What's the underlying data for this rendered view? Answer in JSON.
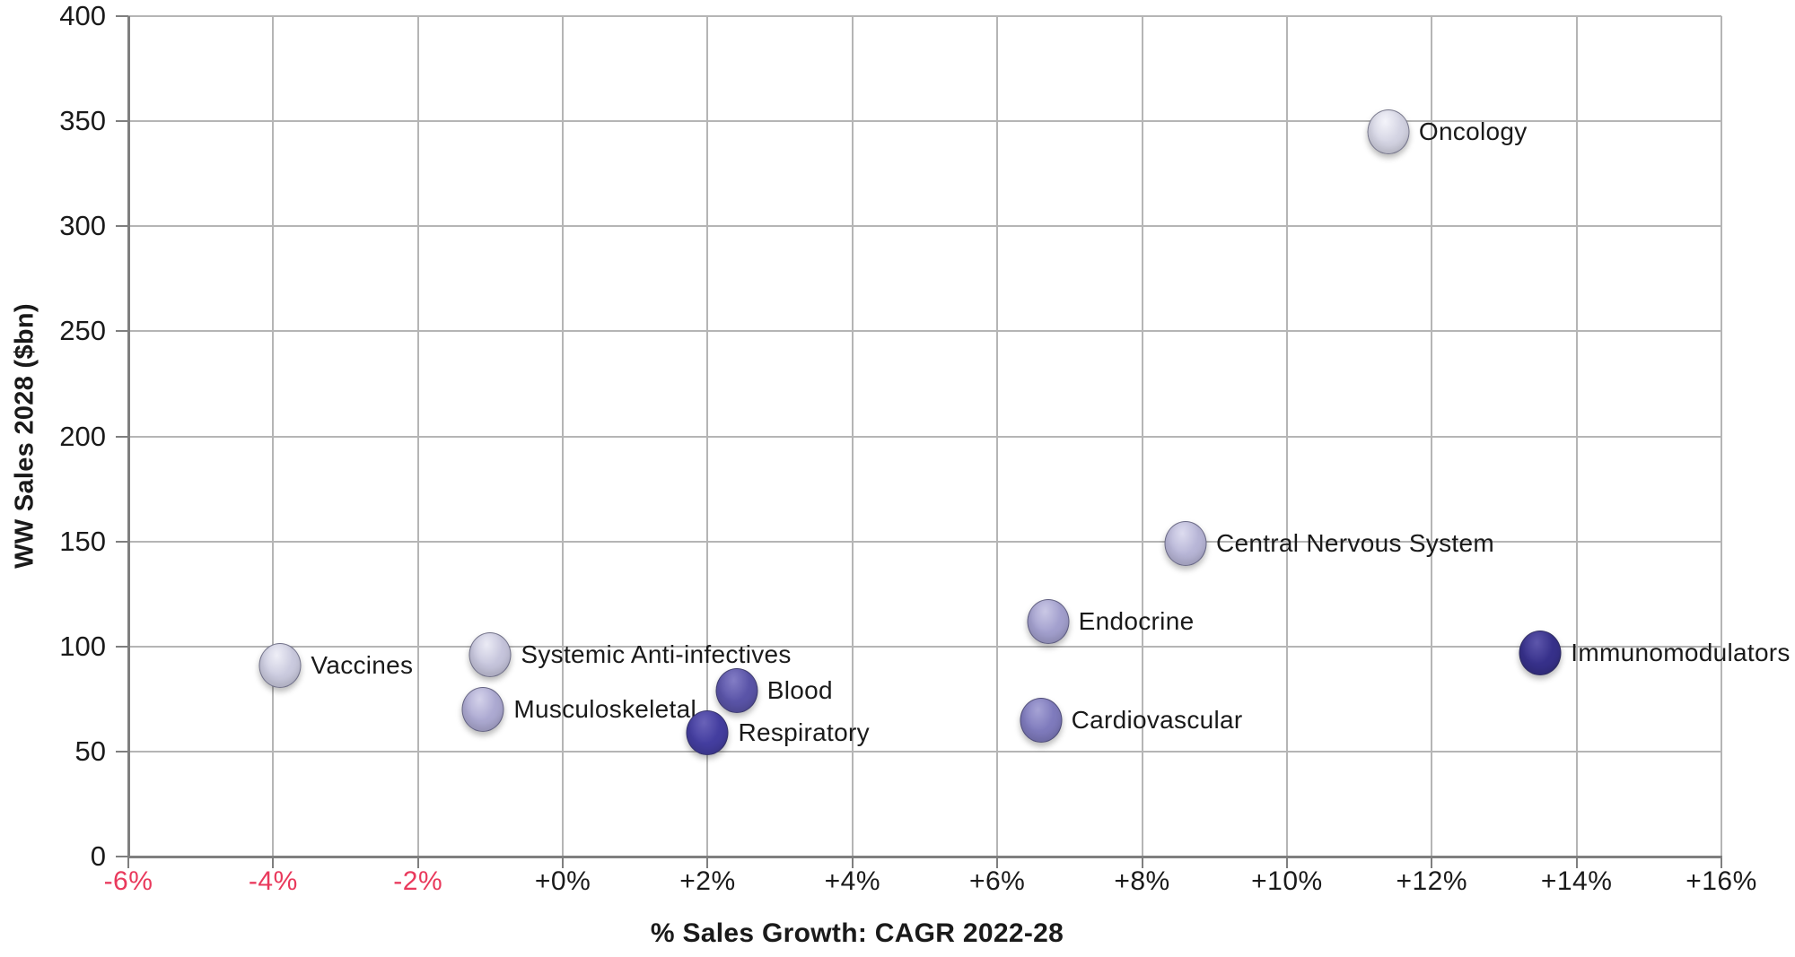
{
  "page": {
    "background": "#ffffff"
  },
  "chart_data": {
    "type": "scatter",
    "title": "",
    "xlabel": "% Sales Growth: CAGR 2022-28",
    "ylabel": "WW Sales 2028 ($bn)",
    "xlim": [
      -6,
      16
    ],
    "ylim": [
      0,
      400
    ],
    "grid": true,
    "legend": "none",
    "x_ticks": [
      {
        "v": -6,
        "label": "-6%",
        "color": "#e9395c"
      },
      {
        "v": -4,
        "label": "-4%",
        "color": "#e9395c"
      },
      {
        "v": -2,
        "label": "-2%",
        "color": "#e9395c"
      },
      {
        "v": 0,
        "label": "+0%",
        "color": "#1a1a1a"
      },
      {
        "v": 2,
        "label": "+2%",
        "color": "#1a1a1a"
      },
      {
        "v": 4,
        "label": "+4%",
        "color": "#1a1a1a"
      },
      {
        "v": 6,
        "label": "+6%",
        "color": "#1a1a1a"
      },
      {
        "v": 8,
        "label": "+8%",
        "color": "#1a1a1a"
      },
      {
        "v": 10,
        "label": "+10%",
        "color": "#1a1a1a"
      },
      {
        "v": 12,
        "label": "+12%",
        "color": "#1a1a1a"
      },
      {
        "v": 14,
        "label": "+14%",
        "color": "#1a1a1a"
      },
      {
        "v": 16,
        "label": "+16%",
        "color": "#1a1a1a"
      }
    ],
    "y_ticks": [
      {
        "v": 0,
        "label": "0"
      },
      {
        "v": 50,
        "label": "50"
      },
      {
        "v": 100,
        "label": "100"
      },
      {
        "v": 150,
        "label": "150"
      },
      {
        "v": 200,
        "label": "200"
      },
      {
        "v": 250,
        "label": "250"
      },
      {
        "v": 300,
        "label": "300"
      },
      {
        "v": 350,
        "label": "350"
      },
      {
        "v": 400,
        "label": "400"
      }
    ],
    "points": [
      {
        "label": "Oncology",
        "x": 11.4,
        "y": 345,
        "base": "#d4d4e3",
        "hi": "#f4f4fa",
        "edge": "#b5b5cd"
      },
      {
        "label": "Central Nervous System",
        "x": 8.6,
        "y": 149,
        "base": "#b8b6d7",
        "hi": "#dddcef",
        "edge": "#9a98c3"
      },
      {
        "label": "Endocrine",
        "x": 6.7,
        "y": 112,
        "base": "#a3a0ce",
        "hi": "#cac8e5",
        "edge": "#8784b6"
      },
      {
        "label": "Immunomodulators",
        "x": 13.5,
        "y": 97,
        "base": "#37318b",
        "hi": "#5d56ab",
        "edge": "#272263"
      },
      {
        "label": "Systemic Anti-infectives",
        "x": -1.0,
        "y": 96,
        "base": "#c6c5dc",
        "hi": "#ebebf5",
        "edge": "#a9a8c9"
      },
      {
        "label": "Vaccines",
        "x": -3.9,
        "y": 91,
        "base": "#cbcbdf",
        "hi": "#efeff7",
        "edge": "#aeaecb"
      },
      {
        "label": "Blood",
        "x": 2.4,
        "y": 79,
        "base": "#5a54a8",
        "hi": "#837dc5",
        "edge": "#464090"
      },
      {
        "label": "Musculoskeletal",
        "x": -1.1,
        "y": 70,
        "base": "#adaad2",
        "hi": "#d4d2ea",
        "edge": "#918eba"
      },
      {
        "label": "Cardiovascular",
        "x": 6.6,
        "y": 65,
        "base": "#7f7bbd",
        "hi": "#a6a3d5",
        "edge": "#6763a6"
      },
      {
        "label": "Respiratory",
        "x": 2.0,
        "y": 59,
        "base": "#443ea0",
        "hi": "#6962b8",
        "edge": "#342f7d"
      }
    ]
  }
}
